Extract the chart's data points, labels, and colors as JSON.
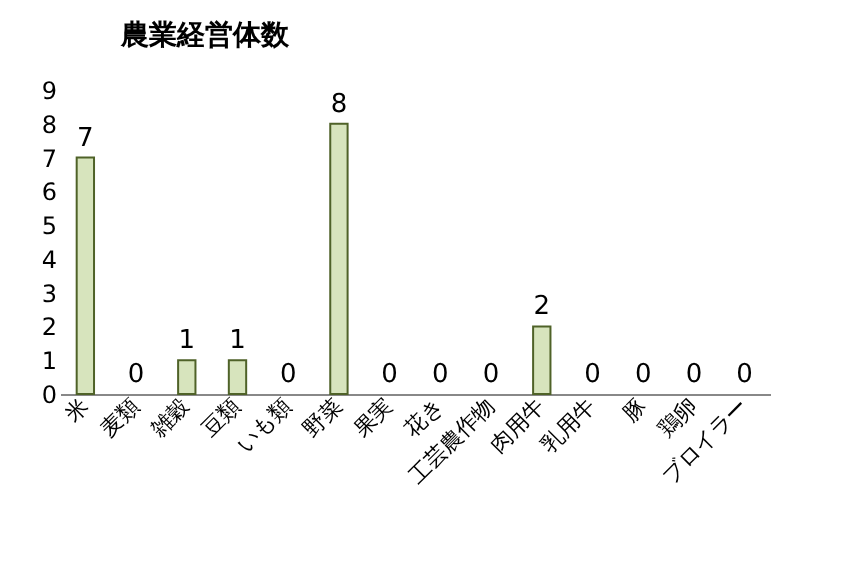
{
  "chart_data": {
    "type": "bar",
    "title": "農業経営体数",
    "categories": [
      "米",
      "麦類",
      "雑穀",
      "豆類",
      "いも類",
      "野菜",
      "果実",
      "花き",
      "工芸農作物",
      "肉用牛",
      "乳用牛",
      "豚",
      "鶏卵",
      "ブロイラー"
    ],
    "values": [
      7,
      0,
      1,
      1,
      0,
      8,
      0,
      0,
      0,
      2,
      0,
      0,
      0,
      0
    ],
    "color": "#d7e4bd",
    "ylim": [
      0,
      9
    ],
    "yticks": [
      0,
      1,
      2,
      3,
      4,
      5,
      6,
      7,
      8,
      9
    ],
    "data_labels": true,
    "grid": false
  }
}
